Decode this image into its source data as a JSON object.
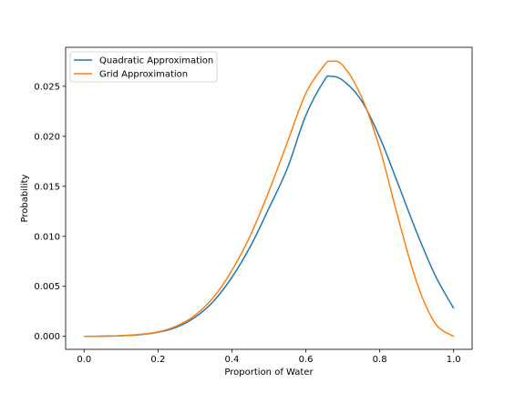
{
  "chart_data": {
    "type": "line",
    "title": "",
    "xlabel": "Proportion of Water",
    "ylabel": "Probability",
    "xlim": [
      -0.05,
      1.05
    ],
    "ylim": [
      -0.0013,
      0.0289
    ],
    "xticks": [
      0.0,
      0.2,
      0.4,
      0.6,
      0.8,
      1.0
    ],
    "xtick_labels": [
      "0.0",
      "0.2",
      "0.4",
      "0.6",
      "0.8",
      "1.0"
    ],
    "yticks": [
      0.0,
      0.005,
      0.01,
      0.015,
      0.02,
      0.025
    ],
    "ytick_labels": [
      "0.000",
      "0.005",
      "0.010",
      "0.015",
      "0.020",
      "0.025"
    ],
    "grid": false,
    "legend_position": "top-left",
    "series": [
      {
        "name": "Quadratic Approximation",
        "color": "#1f77b4",
        "x": [
          0.0,
          0.05,
          0.1,
          0.15,
          0.2,
          0.25,
          0.3,
          0.35,
          0.4,
          0.45,
          0.5,
          0.55,
          0.6,
          0.65,
          0.667,
          0.7,
          0.75,
          0.8,
          0.85,
          0.9,
          0.95,
          1.0
        ],
        "y": [
          0.0,
          2e-05,
          6e-05,
          0.00017,
          0.0004,
          0.00091,
          0.0019,
          0.0035,
          0.0059,
          0.009,
          0.0128,
          0.0168,
          0.0221,
          0.0256,
          0.026,
          0.0256,
          0.0236,
          0.0199,
          0.0152,
          0.0104,
          0.0061,
          0.0028
        ]
      },
      {
        "name": "Grid Approximation",
        "color": "#ff7f0e",
        "x": [
          0.0,
          0.05,
          0.1,
          0.15,
          0.2,
          0.25,
          0.3,
          0.35,
          0.4,
          0.45,
          0.5,
          0.55,
          0.6,
          0.65,
          0.667,
          0.7,
          0.75,
          0.8,
          0.85,
          0.9,
          0.95,
          1.0
        ],
        "y": [
          0.0,
          1e-05,
          6e-05,
          0.00019,
          0.00044,
          0.00103,
          0.0021,
          0.0039,
          0.0066,
          0.0101,
          0.0145,
          0.0194,
          0.0243,
          0.0271,
          0.0275,
          0.0271,
          0.024,
          0.0188,
          0.0118,
          0.0054,
          0.0013,
          0.0
        ]
      }
    ]
  }
}
